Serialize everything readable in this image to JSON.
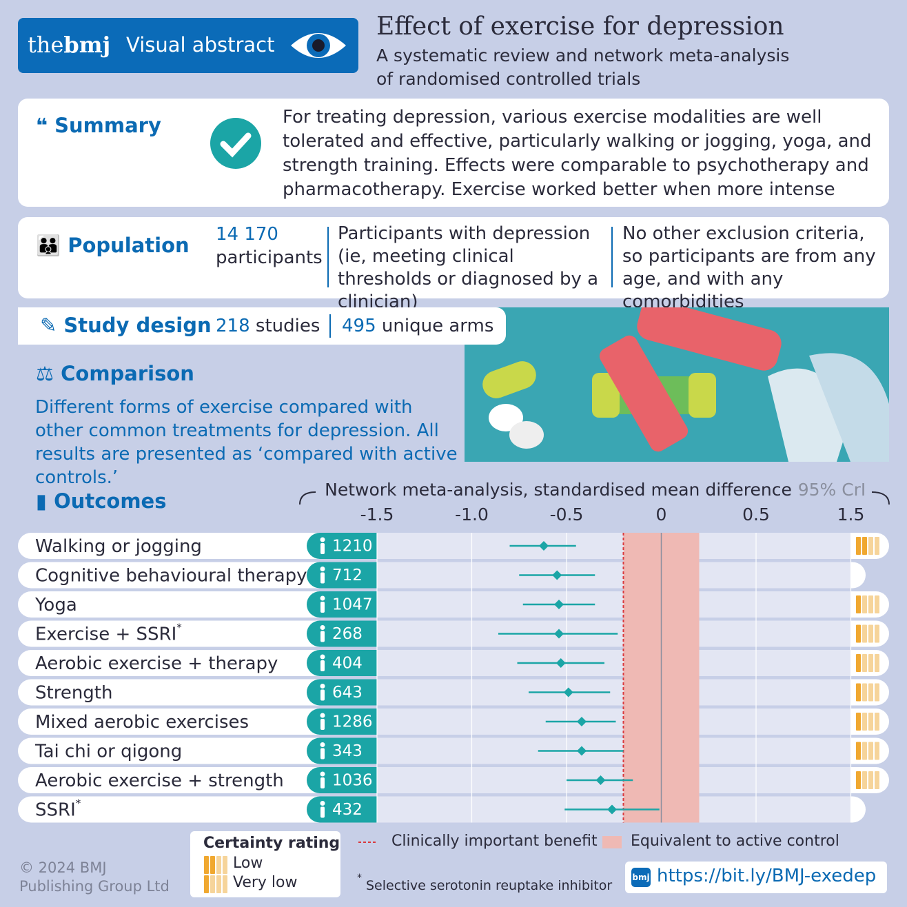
{
  "header": {
    "brand_prefix": "the",
    "brand_name": "bmj",
    "label": "Visual abstract",
    "title": "Effect of exercise for depression",
    "subtitle": "A systematic review and network meta-analysis of randomised controlled trials"
  },
  "summary": {
    "heading": "Summary",
    "text": "For treating depression, various exercise modalities are well tolerated and effective, particularly walking or jogging, yoga, and strength training. Effects were comparable to psychotherapy and pharmacotherapy. Exercise worked better when more intense"
  },
  "population": {
    "heading": "Population",
    "count": "14 170",
    "count_label": "participants",
    "criteria": [
      "Participants with depression (ie, meeting clinical thresholds or diagnosed by a clinician)",
      "No other exclusion criteria, so participants are from any age, and with any comorbidities"
    ]
  },
  "study_design": {
    "heading": "Study design",
    "studies": "218",
    "studies_label": "studies",
    "arms": "495",
    "arms_label": "unique arms"
  },
  "comparison": {
    "heading": "Comparison",
    "text": "Different forms of exercise compared with other common treatments for depression. All results are presented as ‘compared with active controls.’"
  },
  "outcomes": {
    "heading": "Outcomes",
    "axis_title": "Network meta-analysis, standardised mean difference",
    "ci_label": "95% CrI",
    "xticks": [
      -1.5,
      -1.0,
      -0.5,
      0,
      0.5,
      1.5
    ],
    "color": "#1ba5a6",
    "rows": [
      {
        "label": "Walking or jogging",
        "participants": "1210",
        "estimate": -0.62,
        "lower": -0.8,
        "upper": -0.45,
        "certainty": "Low"
      },
      {
        "label": "Cognitive behavioural therapy",
        "participants": "712",
        "estimate": -0.55,
        "lower": -0.75,
        "upper": -0.35,
        "certainty": null
      },
      {
        "label": "Yoga",
        "participants": "1047",
        "estimate": -0.54,
        "lower": -0.73,
        "upper": -0.35,
        "certainty": "Very low"
      },
      {
        "label": "Exercise + SSRI",
        "marker": "*",
        "participants": "268",
        "estimate": -0.54,
        "lower": -0.86,
        "upper": -0.23,
        "certainty": "Very low"
      },
      {
        "label": "Aerobic exercise + therapy",
        "participants": "404",
        "estimate": -0.53,
        "lower": -0.76,
        "upper": -0.3,
        "certainty": "Very low"
      },
      {
        "label": "Strength",
        "participants": "643",
        "estimate": -0.49,
        "lower": -0.7,
        "upper": -0.27,
        "certainty": "Very low"
      },
      {
        "label": "Mixed aerobic exercises",
        "participants": "1286",
        "estimate": -0.42,
        "lower": -0.61,
        "upper": -0.24,
        "certainty": "Very low"
      },
      {
        "label": "Tai chi or qigong",
        "participants": "343",
        "estimate": -0.42,
        "lower": -0.65,
        "upper": -0.2,
        "certainty": "Very low"
      },
      {
        "label": "Aerobic exercise + strength",
        "participants": "1036",
        "estimate": -0.32,
        "lower": -0.5,
        "upper": -0.15,
        "certainty": "Very low"
      },
      {
        "label": "SSRI",
        "marker": "*",
        "participants": "432",
        "estimate": -0.26,
        "lower": -0.51,
        "upper": -0.01,
        "certainty": null
      }
    ],
    "benefit_threshold": -0.2,
    "equivalence": [
      -0.2,
      0.2
    ]
  },
  "legend": {
    "certainty_title": "Certainty rating",
    "levels": [
      "Low",
      "Very low"
    ],
    "benefit_label": "Clinically important benefit",
    "equivalence_label": "Equivalent to active control",
    "footnote_marker": "*",
    "footnote": "Selective serotonin reuptake inhibitor",
    "url_icon": "bmj",
    "url": "https://bit.ly/BMJ-exedep",
    "copyright": "© 2024 BMJ Publishing Group Ltd"
  }
}
